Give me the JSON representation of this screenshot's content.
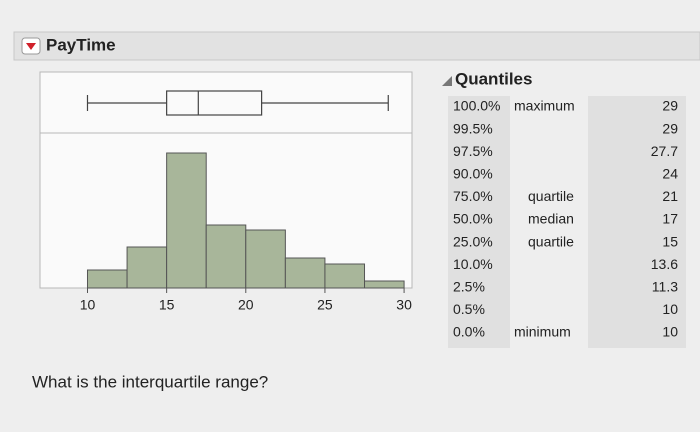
{
  "header": {
    "title": "PayTime"
  },
  "chart_data": {
    "type": "histogram",
    "bins": [
      10,
      12.5,
      15,
      17.5,
      20,
      22.5,
      25,
      27.5,
      30
    ],
    "values": [
      18,
      41,
      135,
      63,
      58,
      30,
      24,
      7
    ],
    "color": "#a8b69a",
    "xlim": [
      7,
      30.5
    ],
    "xticks": [
      10,
      15,
      20,
      25,
      30
    ],
    "ylim": [
      0,
      155
    ]
  },
  "quantiles": {
    "title": "Quantiles",
    "rows": [
      [
        "100.0%",
        "maximum",
        29
      ],
      [
        "99.5%",
        null,
        29
      ],
      [
        "97.5%",
        null,
        27.7
      ],
      [
        "90.0%",
        null,
        24
      ],
      [
        "75.0%",
        "quartile",
        21
      ],
      [
        "50.0%",
        "median",
        17
      ],
      [
        "25.0%",
        "quartile",
        15
      ],
      [
        "10.0%",
        null,
        13.6
      ],
      [
        "2.5%",
        null,
        11.3
      ],
      [
        "0.5%",
        null,
        10
      ],
      [
        "0.0%",
        "minimum",
        10
      ]
    ]
  },
  "question": "What is the interquartile range?"
}
